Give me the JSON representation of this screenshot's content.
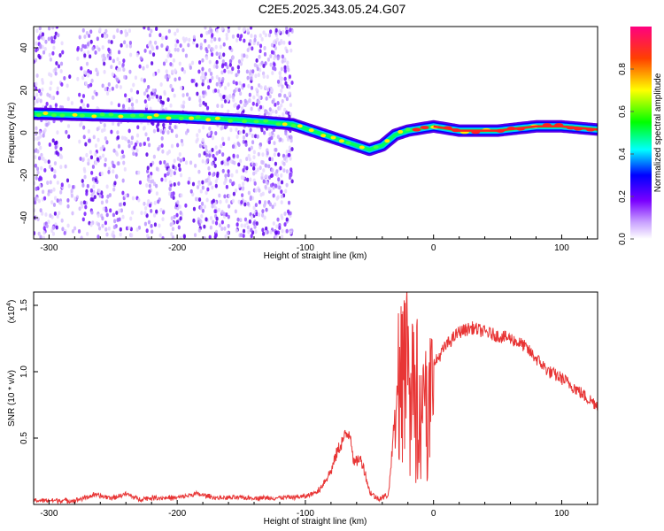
{
  "title": "C2E5.2025.343.05.24.G07",
  "chart_data": [
    {
      "type": "heatmap",
      "xlabel": "Height of straight line (km)",
      "ylabel": "Frequency (Hz)",
      "xlim": [
        -312,
        128
      ],
      "ylim": [
        -50,
        50
      ],
      "xticks": [
        -300,
        -200,
        -100,
        0,
        100
      ],
      "yticks": [
        40,
        20,
        0,
        -20,
        -40
      ],
      "colorbar": {
        "label": "Normalized spectral amplitude",
        "range": [
          0,
          1
        ],
        "ticks": [
          "0.0",
          "0.2",
          "0.4",
          "0.6",
          "0.8"
        ],
        "tick_values": [
          0.0,
          0.2,
          0.4,
          0.6,
          0.8
        ]
      },
      "ridge": {
        "x": [
          -312,
          -250,
          -200,
          -150,
          -110,
          -90,
          -75,
          -60,
          -50,
          -40,
          -30,
          -20,
          -10,
          0,
          20,
          50,
          80,
          100,
          128
        ],
        "y": [
          9,
          8,
          7.5,
          6,
          4,
          0,
          -3,
          -6,
          -8,
          -6,
          -1,
          1,
          2,
          3,
          1,
          1,
          3,
          3,
          1.5
        ]
      },
      "colors": [
        "#ffffff",
        "#b28cff",
        "#7a00ff",
        "#0000ff",
        "#00ffff",
        "#00ff00",
        "#ffff00",
        "#ff0000",
        "#ff0080"
      ]
    },
    {
      "type": "line",
      "xlabel": "Height of straight line (km)",
      "ylabel": "SNR (10 * v/v)",
      "scale_label": "(x10",
      "scale_exponent": "4",
      "scale_suffix": ")",
      "xlim": [
        -312,
        128
      ],
      "ylim": [
        0,
        1.6
      ],
      "xticks": [
        -300,
        -200,
        -100,
        0,
        100
      ],
      "yticks": [
        "0.5",
        "1.0",
        "1.5"
      ],
      "ytick_values": [
        0.5,
        1.0,
        1.5
      ],
      "line_color": "#e83535",
      "profile": {
        "x": [
          -312,
          -280,
          -265,
          -250,
          -240,
          -230,
          -220,
          -200,
          -185,
          -170,
          -150,
          -120,
          -100,
          -90,
          -80,
          -75,
          -70,
          -65,
          -62,
          -58,
          -55,
          -50,
          -45,
          -40,
          -35,
          -30,
          -28,
          -25,
          -20,
          -15,
          -10,
          -5,
          0,
          10,
          20,
          30,
          40,
          50,
          60,
          70,
          80,
          90,
          100,
          110,
          120,
          128
        ],
        "y": [
          0.03,
          0.03,
          0.07,
          0.05,
          0.08,
          0.04,
          0.05,
          0.05,
          0.08,
          0.05,
          0.05,
          0.05,
          0.06,
          0.1,
          0.25,
          0.4,
          0.5,
          0.55,
          0.3,
          0.35,
          0.3,
          0.1,
          0.05,
          0.05,
          0.08,
          0.7,
          1.2,
          1.35,
          1.2,
          1.1,
          1.0,
          0.9,
          1.05,
          1.2,
          1.3,
          1.33,
          1.3,
          1.27,
          1.25,
          1.2,
          1.1,
          1.0,
          0.95,
          0.88,
          0.8,
          0.75
        ]
      }
    }
  ]
}
